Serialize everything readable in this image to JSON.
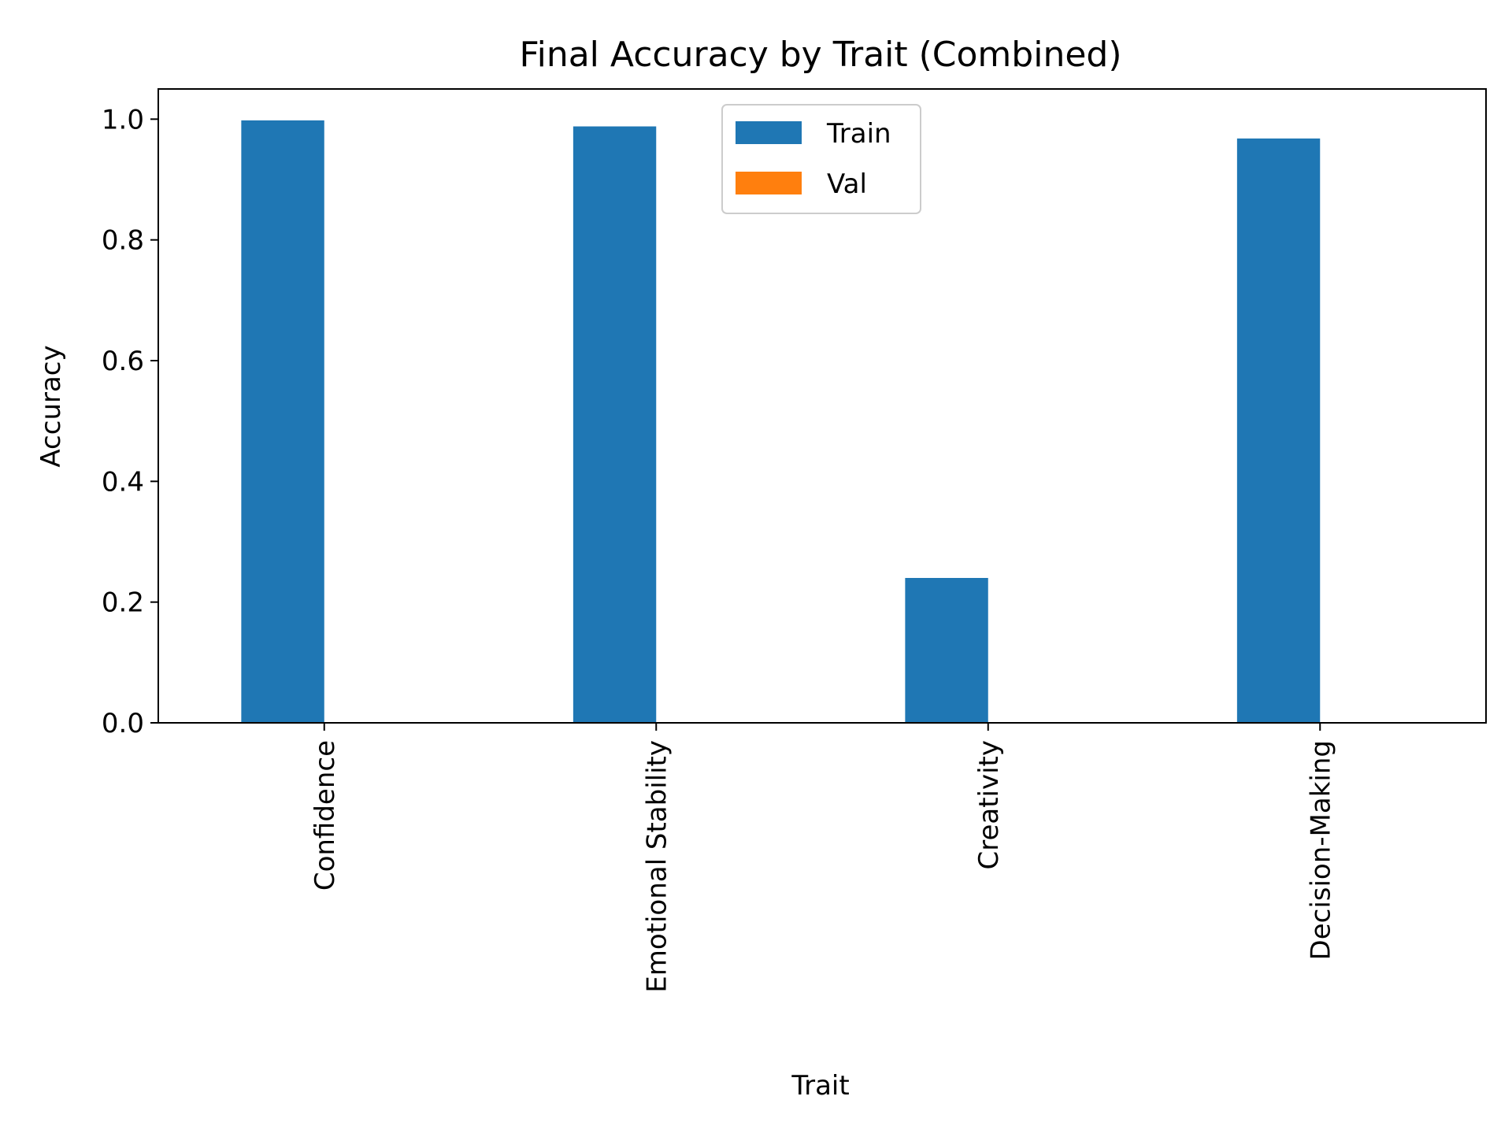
{
  "chart_data": {
    "type": "bar",
    "title": "Final Accuracy by Trait (Combined)",
    "xlabel": "Trait",
    "ylabel": "Accuracy",
    "categories": [
      "Confidence",
      "Emotional Stability",
      "Creativity",
      "Decision-Making"
    ],
    "series": [
      {
        "name": "Train",
        "color": "#1f77b4",
        "values": [
          0.998,
          0.988,
          0.24,
          0.968
        ]
      },
      {
        "name": "Val",
        "color": "#ff7f0e",
        "values": [
          0,
          0,
          0,
          0
        ]
      }
    ],
    "ylim": [
      0,
      1.05
    ],
    "yticks": [
      "0.0",
      "0.2",
      "0.4",
      "0.6",
      "0.8",
      "1.0"
    ],
    "grid": false,
    "legend_position": "upper-center"
  }
}
